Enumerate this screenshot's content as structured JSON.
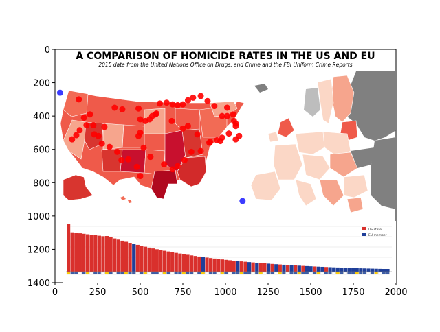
{
  "figure": {
    "title": "A COMPARISON OF HOMICIDE RATES IN THE US AND EU",
    "subtitle": "2015 data from the United Nations Office on Drugs, and Crime and the FBI Uniform Crime Reports",
    "legend": {
      "us": "US state",
      "eu": "EU member"
    },
    "colors": {
      "us_dark": "#c8102e",
      "us_mid": "#ef5a4a",
      "us_light": "#f6a58d",
      "eu_light": "#fbd7c6",
      "non_eu": "#808080",
      "eu_bar": "#1f3f99",
      "us_bar": "#d9302c",
      "marker_red": "#ff0000",
      "marker_blue": "#1a1aff"
    }
  },
  "chart_data": {
    "type": "scatter",
    "xlim": [
      0,
      2000
    ],
    "ylim": [
      1400,
      0
    ],
    "x_ticks": [
      0,
      250,
      500,
      750,
      1000,
      1250,
      1500,
      1750,
      2000
    ],
    "y_ticks": [
      0,
      200,
      400,
      600,
      800,
      1000,
      1200,
      1400
    ],
    "series": [
      {
        "color": "#ff0000",
        "x": [
          140,
          205,
          350,
          290,
          395,
          490,
          595,
          685,
          750,
          780,
          835,
          905,
          950,
          980,
          1010,
          1045,
          1060,
          1050,
          1060,
          980,
          935,
          895,
          855,
          810,
          780,
          750,
          720,
          690,
          655,
          615,
          590,
          570,
          555,
          530,
          500,
          500,
          480,
          430,
          390,
          365,
          320,
          275,
          255,
          230,
          225,
          185,
          170,
          145,
          125,
          100,
          490,
          500,
          520,
          560,
          640,
          690,
          720,
          760,
          800,
          855,
          910,
          970,
          1020,
          1060,
          1080,
          1010
        ],
        "y": [
          300,
          390,
          350,
          465,
          360,
          355,
          385,
          430,
          475,
          460,
          510,
          560,
          545,
          530,
          400,
          390,
          445,
          430,
          460,
          400,
          340,
          310,
          280,
          290,
          305,
          330,
          335,
          330,
          320,
          325,
          390,
          400,
          420,
          430,
          500,
          760,
          705,
          660,
          665,
          615,
          585,
          565,
          520,
          510,
          455,
          455,
          410,
          485,
          515,
          540,
          520,
          420,
          590,
          645,
          690,
          720,
          700,
          665,
          615,
          610,
          555,
          550,
          505,
          540,
          520,
          350
        ],
        "marker": "circle"
      },
      {
        "color": "#1a1aff",
        "x": [
          30,
          1100
        ],
        "y": [
          260,
          910
        ],
        "marker": "circle"
      }
    ]
  }
}
